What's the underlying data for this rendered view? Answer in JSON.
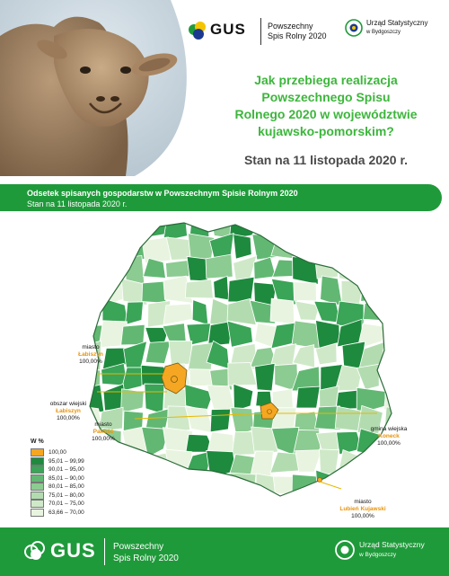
{
  "header": {
    "gus_logo_text": "GUS",
    "psr_line1": "Powszechny",
    "psr_line2": "Spis Rolny 2020",
    "urzad_line1": "Urząd Statystyczny",
    "urzad_line2": "w Bydgoszczy"
  },
  "headline": {
    "line1": "Jak przebiega realizacja",
    "line2": "Powszechnego Spisu",
    "line3": "Rolnego 2020 w województwie",
    "line4": "kujawsko-pomorskim?"
  },
  "date_line": "Stan na 11 listopada 2020 r.",
  "banner": {
    "title": "Odsetek spisanych gospodarstw w Powszechnym Spisie Rolnym 2020",
    "subtitle": "Stan na 11 listopada 2020 r."
  },
  "annotations": [
    {
      "type": "miasto",
      "place": "Łabiszyn",
      "value": "100,00%"
    },
    {
      "type": "obszar wiejski",
      "place": "Łabiszyn",
      "value": "100,00%"
    },
    {
      "type": "miasto",
      "place": "Pakość",
      "value": "100,00%"
    },
    {
      "type": "gmina wiejska",
      "place": "Koneck",
      "value": "100,00%"
    },
    {
      "type": "miasto",
      "place": "Lubień Kujawski",
      "value": "100,00%"
    }
  ],
  "legend": {
    "title": "W %",
    "items": [
      {
        "label": "100,00",
        "color": "#f5a623"
      },
      {
        "label": "95,01 – 99,99",
        "color": "#1e8a3e"
      },
      {
        "label": "90,01 – 95,00",
        "color": "#3aa457"
      },
      {
        "label": "85,01 – 90,00",
        "color": "#62b873"
      },
      {
        "label": "80,01 – 85,00",
        "color": "#8ccb91"
      },
      {
        "label": "75,01 – 80,00",
        "color": "#b2dcb0"
      },
      {
        "label": "70,01 – 75,00",
        "color": "#cfe9c8"
      },
      {
        "label": "63,66 – 70,00",
        "color": "#e8f4df"
      }
    ]
  },
  "footer": {
    "gus_logo_text": "GUS",
    "psr_line1": "Powszechny",
    "psr_line2": "Spis Rolny 2020",
    "urzad_line1": "Urząd Statystyczny",
    "urzad_line2": "w Bydgoszczy"
  },
  "colors": {
    "accent_green": "#1f9a3a",
    "headline_green": "#3db63c",
    "highlight_orange": "#f5a623"
  }
}
